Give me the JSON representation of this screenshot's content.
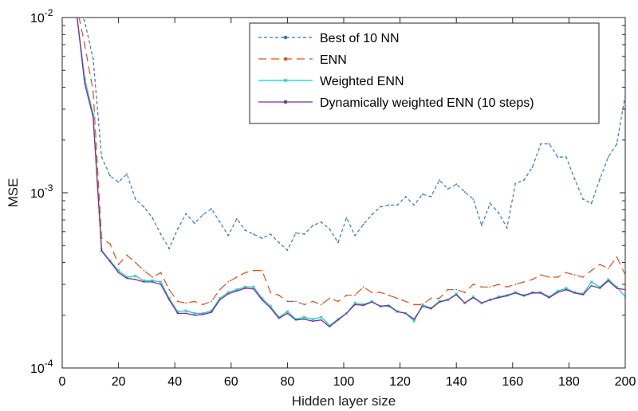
{
  "chart_data": {
    "type": "line",
    "title": "",
    "xlabel": "Hidden layer size",
    "ylabel": "MSE",
    "xlim": [
      0,
      200
    ],
    "ylim": [
      0.0001,
      0.01
    ],
    "yscale": "log",
    "xticks": [
      0,
      20,
      40,
      60,
      80,
      100,
      120,
      140,
      160,
      180,
      200
    ],
    "xtick_labels": [
      "0",
      "20",
      "40",
      "60",
      "80",
      "100",
      "120",
      "140",
      "160",
      "180",
      "200"
    ],
    "yticks": [
      0.0001,
      0.001,
      0.01
    ],
    "ytick_labels": [
      {
        "base": "10",
        "exp": "-4"
      },
      {
        "base": "10",
        "exp": "-3"
      },
      {
        "base": "10",
        "exp": "-2"
      }
    ],
    "grid": false,
    "legend_position": "top-right",
    "x": [
      5,
      8,
      11,
      14,
      17,
      20,
      23,
      26,
      29,
      32,
      35,
      38,
      41,
      44,
      47,
      50,
      53,
      56,
      59,
      62,
      65,
      68,
      71,
      74,
      77,
      80,
      83,
      86,
      89,
      92,
      95,
      98,
      101,
      104,
      107,
      110,
      113,
      116,
      119,
      122,
      125,
      128,
      131,
      134,
      137,
      140,
      143,
      146,
      149,
      152,
      155,
      158,
      161,
      164,
      167,
      170,
      173,
      176,
      179,
      182,
      185,
      188,
      191,
      194,
      197,
      200
    ],
    "series": [
      {
        "name": "Best of 10 NN",
        "color": "#2e7bbf",
        "style": "dotted-dash",
        "values": [
          0.012,
          0.0095,
          0.0058,
          0.0016,
          0.00125,
          0.00115,
          0.00128,
          0.00092,
          0.00083,
          0.00072,
          0.00058,
          0.00048,
          0.00062,
          0.00076,
          0.00067,
          0.00075,
          0.00081,
          0.00068,
          0.00057,
          0.00071,
          0.00061,
          0.00058,
          0.00055,
          0.00058,
          0.00052,
          0.00047,
          0.00059,
          0.00058,
          0.00065,
          0.00068,
          0.00062,
          0.00052,
          0.00072,
          0.00057,
          0.00066,
          0.00075,
          0.00083,
          0.00085,
          0.00085,
          0.00095,
          0.00085,
          0.00098,
          0.00095,
          0.00118,
          0.00105,
          0.00112,
          0.00101,
          0.00092,
          0.00065,
          0.00087,
          0.00077,
          0.00063,
          0.00113,
          0.00118,
          0.0014,
          0.0019,
          0.0019,
          0.0016,
          0.0016,
          0.0012,
          0.00092,
          0.00087,
          0.0012,
          0.0016,
          0.0019,
          0.0036
        ]
      },
      {
        "name": "ENN",
        "color": "#d95319",
        "style": "dashed",
        "values": [
          0.012,
          0.007,
          0.0038,
          0.00055,
          0.00051,
          0.00039,
          0.00044,
          0.0004,
          0.00036,
          0.00033,
          0.00035,
          0.00028,
          0.00024,
          0.000235,
          0.00024,
          0.00023,
          0.00024,
          0.00028,
          0.00031,
          0.00033,
          0.00035,
          0.00036,
          0.00036,
          0.00027,
          0.00026,
          0.00024,
          0.00024,
          0.00023,
          0.00024,
          0.00023,
          0.00025,
          0.00024,
          0.00026,
          0.00026,
          0.00029,
          0.00027,
          0.00027,
          0.00026,
          0.00025,
          0.00024,
          0.00023,
          0.00023,
          0.00025,
          0.00025,
          0.00028,
          0.00028,
          0.00027,
          0.0003,
          0.00029,
          0.00029,
          0.0003,
          0.00029,
          0.0003,
          0.00031,
          0.00032,
          0.00034,
          0.00033,
          0.00033,
          0.00035,
          0.00034,
          0.00033,
          0.00036,
          0.00039,
          0.00037,
          0.00043,
          0.00034
        ]
      },
      {
        "name": "Weighted ENN",
        "color": "#2ec4c4",
        "style": "solid-x",
        "values": [
          0.011,
          0.0045,
          0.0028,
          0.00047,
          0.00041,
          0.00036,
          0.00033,
          0.000335,
          0.000315,
          0.000315,
          0.00031,
          0.00025,
          0.00021,
          0.000212,
          0.000205,
          0.000205,
          0.000212,
          0.00025,
          0.00027,
          0.00028,
          0.00029,
          0.00029,
          0.00025,
          0.000225,
          0.000195,
          0.00021,
          0.00019,
          0.000195,
          0.00019,
          0.000195,
          0.000175,
          0.00019,
          0.000205,
          0.000235,
          0.00023,
          0.00024,
          0.000225,
          0.000225,
          0.00021,
          0.000205,
          0.000185,
          0.00023,
          0.00022,
          0.00024,
          0.000245,
          0.000265,
          0.000235,
          0.000255,
          0.000235,
          0.000245,
          0.000255,
          0.00026,
          0.00027,
          0.00026,
          0.00027,
          0.00027,
          0.000255,
          0.000275,
          0.000285,
          0.00027,
          0.000265,
          0.00031,
          0.00029,
          0.00032,
          0.00029,
          0.000255
        ]
      },
      {
        "name": "Dynamically weighted ENN (10 steps)",
        "color": "#7e2f8e",
        "style": "solid-dot",
        "values": [
          0.011,
          0.0042,
          0.0027,
          0.000465,
          0.000405,
          0.00035,
          0.000325,
          0.00032,
          0.00031,
          0.00031,
          0.0003,
          0.000245,
          0.000205,
          0.000205,
          0.0002,
          0.000202,
          0.000208,
          0.000245,
          0.000265,
          0.000275,
          0.000285,
          0.000282,
          0.000245,
          0.00022,
          0.000192,
          0.000205,
          0.000188,
          0.00019,
          0.000185,
          0.000188,
          0.000172,
          0.000188,
          0.000205,
          0.00023,
          0.000228,
          0.000238,
          0.000225,
          0.000228,
          0.00021,
          0.000205,
          0.00019,
          0.000225,
          0.000218,
          0.000238,
          0.000245,
          0.000262,
          0.000235,
          0.000252,
          0.000235,
          0.000245,
          0.000252,
          0.000258,
          0.000268,
          0.000258,
          0.000268,
          0.000268,
          0.000252,
          0.00027,
          0.00028,
          0.000268,
          0.000262,
          0.000295,
          0.000285,
          0.000315,
          0.000285,
          0.00028
        ]
      }
    ]
  }
}
